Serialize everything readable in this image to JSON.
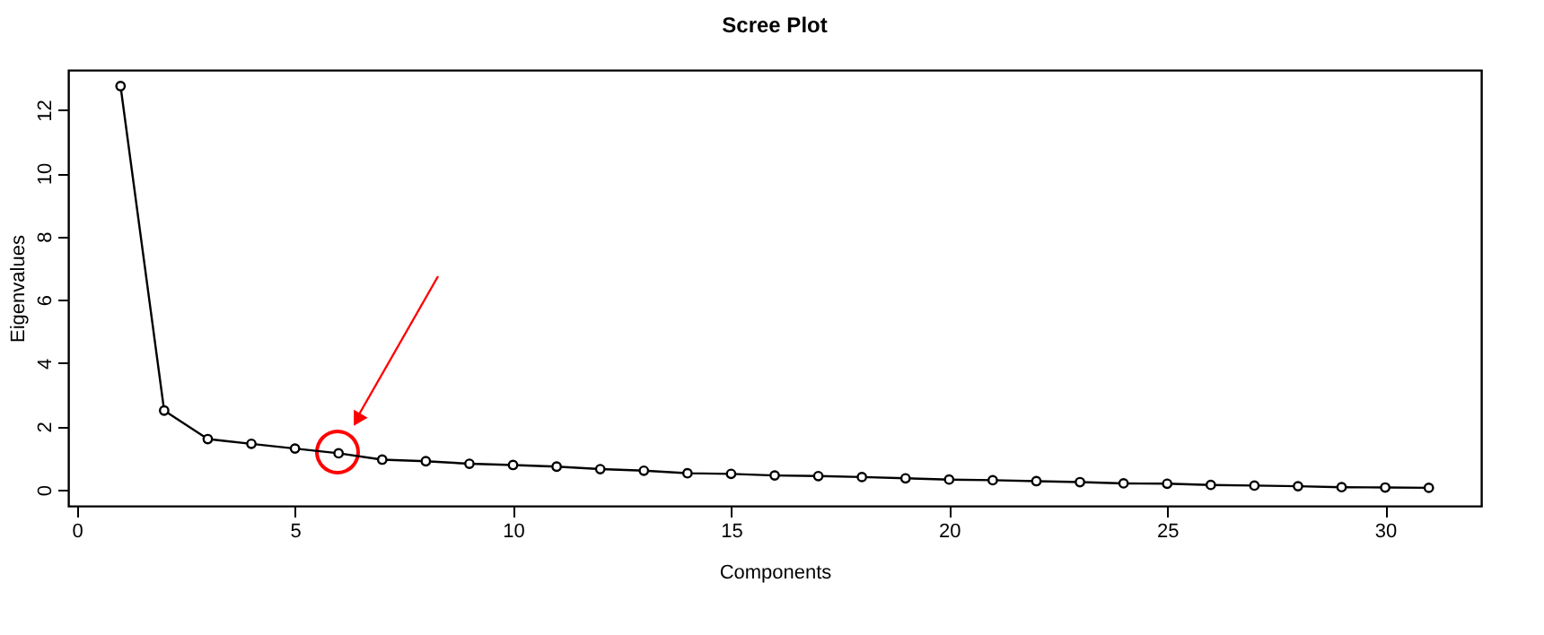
{
  "chart_data": {
    "type": "line",
    "title": "Scree Plot",
    "xlabel": "Components",
    "ylabel": "Eigenvalues",
    "x": [
      1,
      2,
      3,
      4,
      5,
      6,
      7,
      8,
      9,
      10,
      11,
      12,
      13,
      14,
      15,
      16,
      17,
      18,
      19,
      20,
      21,
      22,
      23,
      24,
      25,
      26,
      27,
      28,
      29,
      30,
      31
    ],
    "series": [
      {
        "color": "#000000",
        "values": [
          12.75,
          2.5,
          1.6,
          1.45,
          1.3,
          1.15,
          0.95,
          0.9,
          0.82,
          0.78,
          0.73,
          0.65,
          0.6,
          0.52,
          0.5,
          0.45,
          0.43,
          0.4,
          0.36,
          0.32,
          0.3,
          0.27,
          0.24,
          0.2,
          0.19,
          0.15,
          0.13,
          0.11,
          0.08,
          0.07,
          0.06
        ]
      }
    ],
    "xlim": [
      -0.2,
      32.2
    ],
    "ylim": [
      -0.51,
      13.26
    ],
    "xticks": [
      0,
      5,
      10,
      15,
      20,
      25,
      30
    ],
    "yticks": [
      0,
      2,
      4,
      6,
      8,
      10,
      12
    ],
    "marker": "circle",
    "line_style": "solid",
    "grid": false
  }
}
